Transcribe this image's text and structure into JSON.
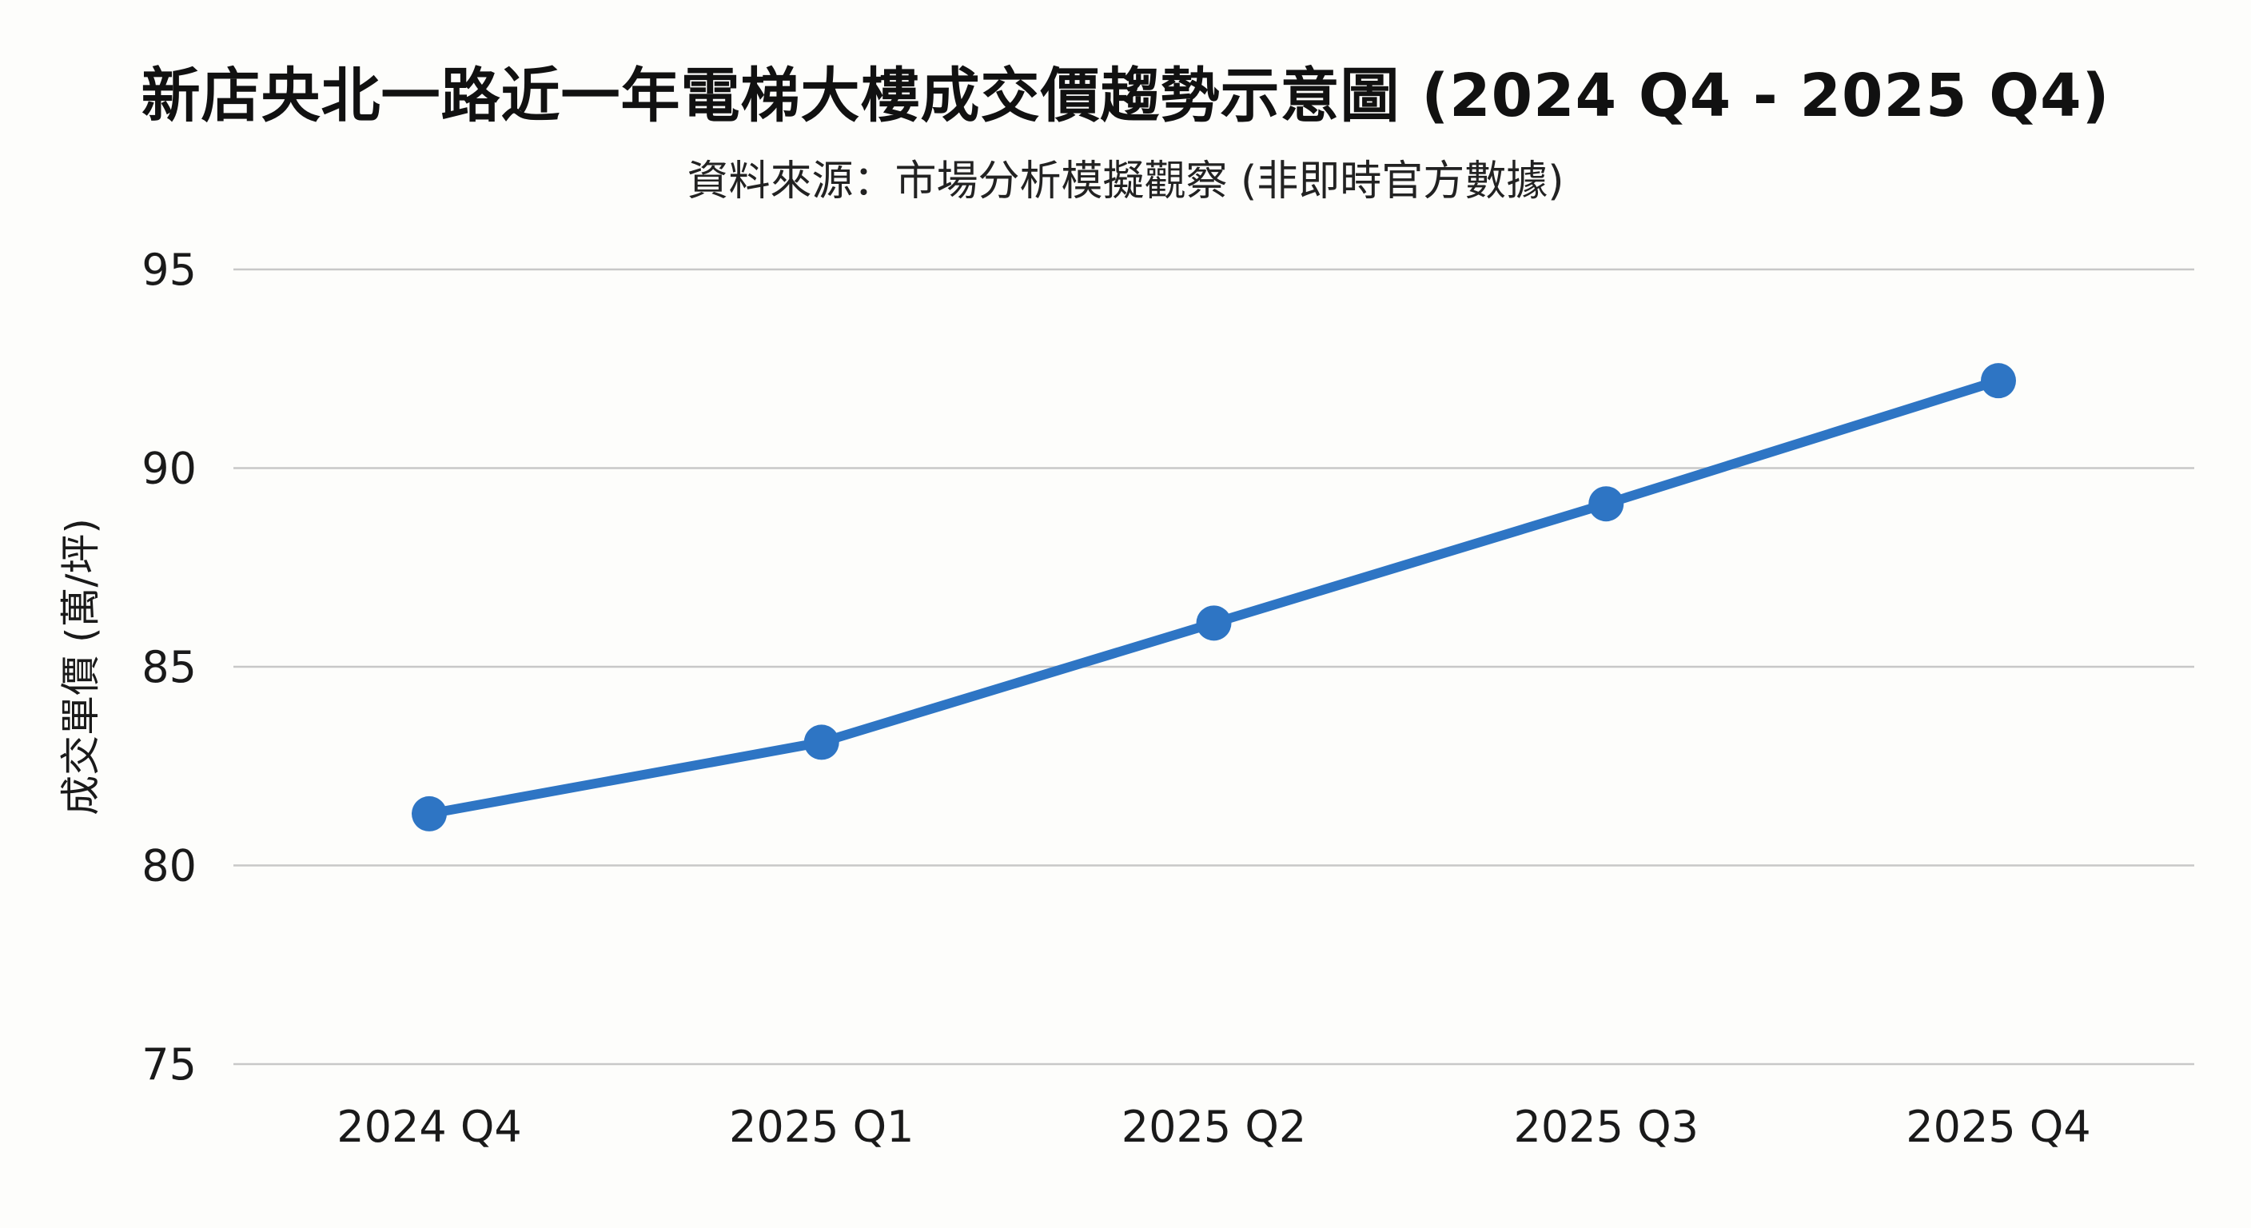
{
  "chart_data": {
    "type": "line",
    "title": "新店央北一路近一年電梯大樓成交價趨勢示意圖 (2024 Q4 - 2025 Q4)",
    "subtitle": "資料來源：市場分析模擬觀察 (非即時官方數據)",
    "xlabel": "",
    "ylabel": "成交單價 (萬/坪)",
    "categories": [
      "2024 Q4",
      "2025 Q1",
      "2025 Q2",
      "2025 Q3",
      "2025 Q4"
    ],
    "series": [
      {
        "values": [
          81.3,
          83.1,
          86.1,
          89.1,
          92.2
        ],
        "color": "#2e75c4"
      }
    ],
    "ylim": [
      75,
      95
    ],
    "yticks": [
      "75",
      "80",
      "85",
      "90",
      "95"
    ],
    "grid": true,
    "grid_color": "#c8c8c8",
    "legend": "none"
  }
}
